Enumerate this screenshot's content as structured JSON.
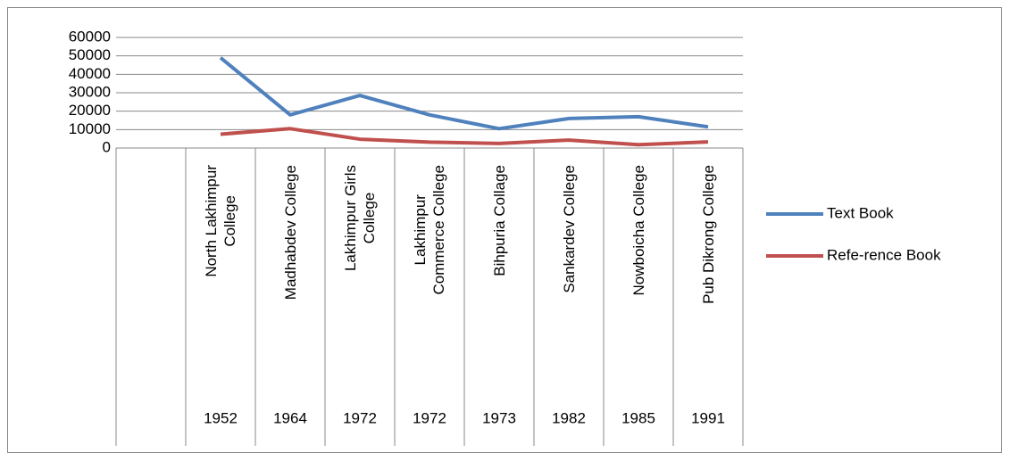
{
  "chart_data": {
    "type": "line",
    "categories": [
      null,
      "North Lakhimpur\nCollege",
      "Madhabdev College",
      "Lakhimpur Girls\nCollege",
      "Lakhimpur\nCommerce College",
      "Bihpuria Collage",
      "Sankardev College",
      "Nowboicha College",
      "Pub Dikrong College"
    ],
    "years": [
      null,
      "1952",
      "1964",
      "1972",
      "1972",
      "1973",
      "1982",
      "1985",
      "1991"
    ],
    "series": [
      {
        "name": "Text Book",
        "color": "#4f81bd",
        "values": [
          null,
          49000,
          18000,
          28500,
          18000,
          10500,
          16000,
          17000,
          11500
        ]
      },
      {
        "name": "Refe-rence Book",
        "color": "#c0504d",
        "values": [
          null,
          7500,
          10500,
          4800,
          3200,
          2500,
          4300,
          1800,
          3300
        ]
      }
    ],
    "ylim": [
      0,
      60000
    ],
    "yticks": [
      0,
      10000,
      20000,
      30000,
      40000,
      50000,
      60000
    ],
    "grid": true,
    "legend": "right"
  }
}
